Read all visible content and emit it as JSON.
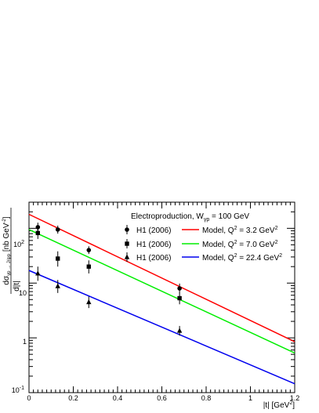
{
  "chart_data": {
    "type": "scatter",
    "xscale": "linear",
    "yscale": "log",
    "xlim": [
      0,
      1.2
    ],
    "ylim": [
      0.1,
      300
    ],
    "x_ticks": [
      0,
      0.2,
      0.4,
      0.6,
      0.8,
      1,
      1.2
    ],
    "x_tick_labels": [
      "0",
      "0.2",
      "0.4",
      "0.6",
      "0.8",
      "1",
      "1.2"
    ],
    "y_ticks": [
      0.1,
      1,
      10,
      100
    ],
    "y_tick_labels": {
      "t0": {
        "base": "10",
        "exp": "-1"
      },
      "t1": "1",
      "t2": "10",
      "t3": {
        "base": "10",
        "exp": "2"
      }
    },
    "xlabel": {
      "pre": "|t| [GeV",
      "sup": "2",
      "post": "]"
    },
    "ylabel": {
      "num_pre": "dσ",
      "num_sub": "γp → J/ψp",
      "num_post": " [nb GeV",
      "num_sup": "-2",
      "num_end": "]",
      "den": "d|t|"
    },
    "legend": {
      "placement": "top-right",
      "header": {
        "pre": "Electroproduction, W",
        "sub": "γp",
        "post": " = 100 GeV"
      },
      "entries": [
        {
          "data_label": "H1 (2006)",
          "model_pre": "Model, Q",
          "model_sup": "2",
          "model_post": " = 3.2 GeV",
          "model_sup2": "2"
        },
        {
          "data_label": "H1 (2006)",
          "model_pre": "Model, Q",
          "model_sup": "2",
          "model_post": " = 7.0 GeV",
          "model_sup2": "2"
        },
        {
          "data_label": "H1 (2006)",
          "model_pre": "Model, Q",
          "model_sup": "2",
          "model_post": " = 22.4 GeV",
          "model_sup2": "2"
        }
      ]
    },
    "series": [
      {
        "marker": "circle",
        "line_color": "#ff0000",
        "points": [
          {
            "x": 0.04,
            "y": 105,
            "err_lo": 20,
            "err_hi": 22
          },
          {
            "x": 0.13,
            "y": 95,
            "err_lo": 15,
            "err_hi": 17
          },
          {
            "x": 0.27,
            "y": 40,
            "err_lo": 6,
            "err_hi": 7
          },
          {
            "x": 0.68,
            "y": 8,
            "err_lo": 1.5,
            "err_hi": 1.8
          }
        ],
        "model": {
          "x": [
            0,
            1.2
          ],
          "y": [
            180,
            0.85
          ]
        }
      },
      {
        "marker": "square",
        "line_color": "#00ee00",
        "points": [
          {
            "x": 0.04,
            "y": 82,
            "err_lo": 18,
            "err_hi": 20
          },
          {
            "x": 0.13,
            "y": 28,
            "err_lo": 8,
            "err_hi": 10
          },
          {
            "x": 0.27,
            "y": 20,
            "err_lo": 5,
            "err_hi": 6
          },
          {
            "x": 0.68,
            "y": 5.3,
            "err_lo": 1.2,
            "err_hi": 1.4
          }
        ],
        "model": {
          "x": [
            0,
            1.2
          ],
          "y": [
            95,
            0.53
          ]
        }
      },
      {
        "marker": "triangle",
        "line_color": "#0000ee",
        "points": [
          {
            "x": 0.04,
            "y": 15,
            "err_lo": 4,
            "err_hi": 5
          },
          {
            "x": 0.13,
            "y": 8.8,
            "err_lo": 2.2,
            "err_hi": 2.6
          },
          {
            "x": 0.27,
            "y": 4.5,
            "err_lo": 1,
            "err_hi": 1.2
          },
          {
            "x": 0.68,
            "y": 1.35,
            "err_lo": 0.25,
            "err_hi": 0.3
          }
        ],
        "model": {
          "x": [
            0,
            1.2
          ],
          "y": [
            17,
            0.145
          ]
        }
      }
    ]
  }
}
